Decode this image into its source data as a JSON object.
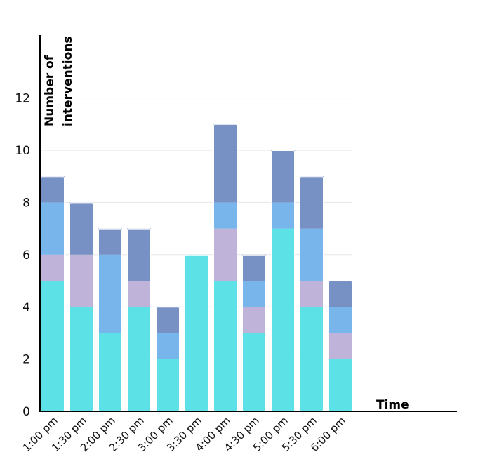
{
  "chart_data": {
    "type": "bar",
    "stacked": true,
    "ylabel_lines": [
      "Number of",
      "interventions"
    ],
    "xlabel": "Time",
    "categories": [
      "1:00 pm",
      "1:30 pm",
      "2:00 pm",
      "2:30 pm",
      "3:00 pm",
      "3:30 pm",
      "4:00 pm",
      "4:30 pm",
      "5:00 pm",
      "5:30 pm",
      "6:00 pm"
    ],
    "series": [
      {
        "color": "#5ce1e6",
        "values": [
          5,
          4,
          3,
          4,
          2,
          6,
          5,
          3,
          7,
          4,
          2
        ]
      },
      {
        "color": "#c0b3d9",
        "values": [
          1,
          2,
          0,
          1,
          0,
          0,
          2,
          1,
          0,
          1,
          1
        ]
      },
      {
        "color": "#77b5ea",
        "values": [
          2,
          0,
          3,
          0,
          1,
          0,
          1,
          1,
          1,
          2,
          1
        ]
      },
      {
        "color": "#7891c4",
        "values": [
          1,
          2,
          1,
          2,
          1,
          0,
          3,
          1,
          2,
          2,
          1
        ]
      }
    ],
    "yticks": [
      0,
      2,
      4,
      6,
      8,
      10,
      12
    ],
    "ylim": [
      0,
      14
    ],
    "grid": true
  }
}
